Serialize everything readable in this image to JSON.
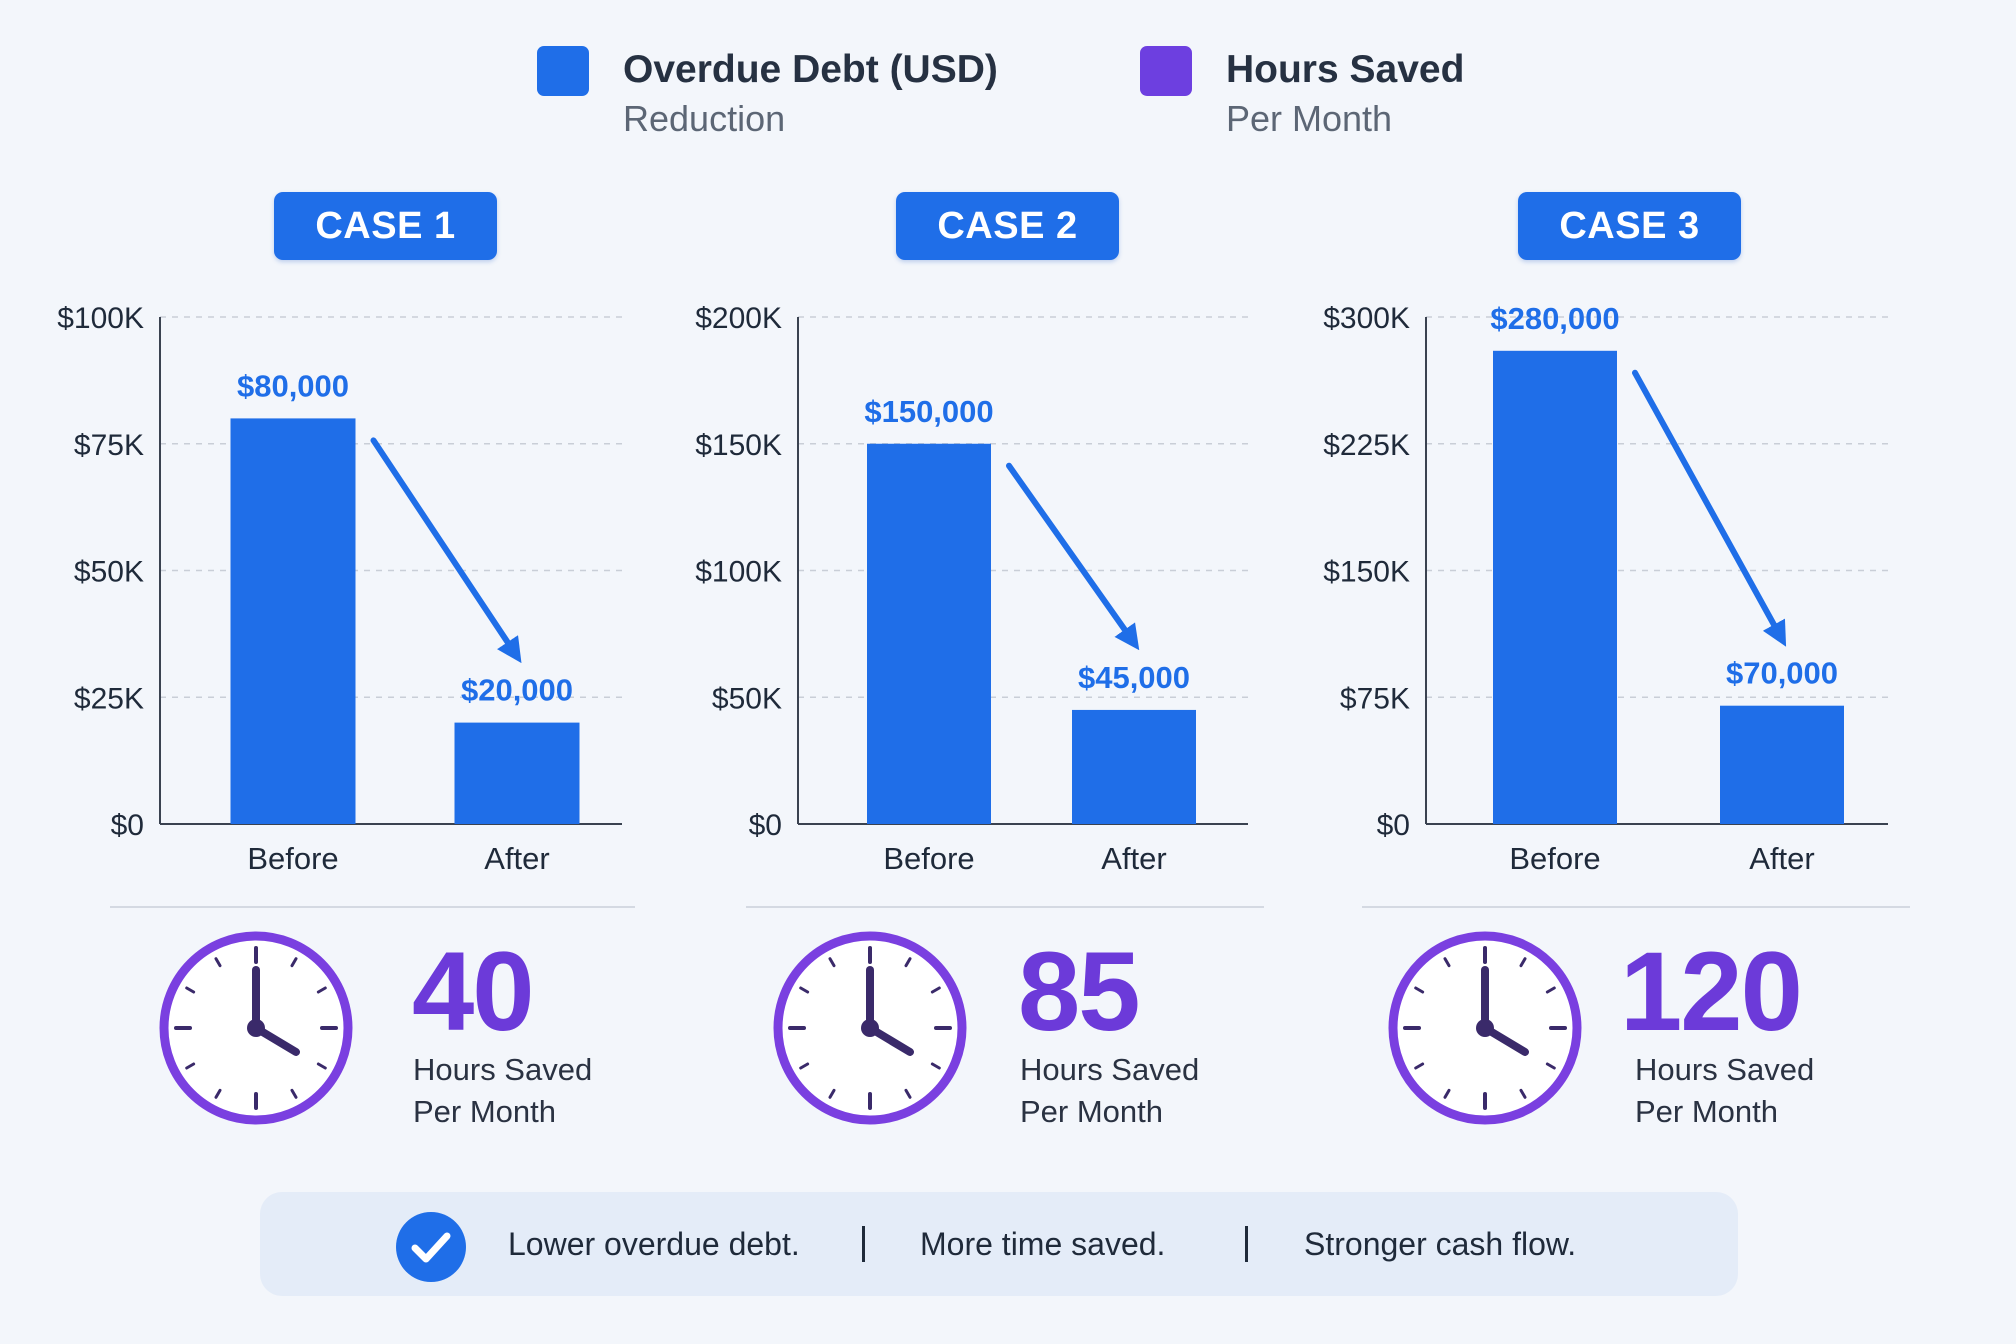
{
  "legend": [
    {
      "title": "Overdue Debt (USD)",
      "subtitle": "Reduction",
      "color": "#1f6ee8",
      "icon": "square-swatch"
    },
    {
      "title": "Hours Saved",
      "subtitle": "Per Month",
      "color": "#6d3fe0",
      "icon": "square-swatch"
    }
  ],
  "chart_data": [
    {
      "type": "bar",
      "title": "CASE 1",
      "categories": [
        "Before",
        "After"
      ],
      "values": [
        80000,
        20000
      ],
      "value_labels": [
        "$80,000",
        "$20,000"
      ],
      "yticks": [
        "$0",
        "$25K",
        "$50K",
        "$75K",
        "$100K"
      ],
      "ylim": [
        0,
        100000
      ],
      "grid": true,
      "color": "#1f6ee8",
      "hours_saved": {
        "value": "40",
        "line1": "Hours Saved",
        "line2": "Per Month"
      }
    },
    {
      "type": "bar",
      "title": "CASE 2",
      "categories": [
        "Before",
        "After"
      ],
      "values": [
        150000,
        45000
      ],
      "value_labels": [
        "$150,000",
        "$45,000"
      ],
      "yticks": [
        "$0",
        "$50K",
        "$100K",
        "$150K",
        "$200K"
      ],
      "ylim": [
        0,
        200000
      ],
      "grid": true,
      "color": "#1f6ee8",
      "hours_saved": {
        "value": "85",
        "line1": "Hours Saved",
        "line2": "Per Month"
      }
    },
    {
      "type": "bar",
      "title": "CASE 3",
      "categories": [
        "Before",
        "After"
      ],
      "values": [
        280000,
        70000
      ],
      "value_labels": [
        "$280,000",
        "$70,000"
      ],
      "yticks": [
        "$0",
        "$75K",
        "$150K",
        "$225K",
        "$300K"
      ],
      "ylim": [
        0,
        300000
      ],
      "grid": true,
      "color": "#1f6ee8",
      "hours_saved": {
        "value": "120",
        "line1": "Hours Saved",
        "line2": "Per Month"
      }
    }
  ],
  "footer": {
    "icon": "check-circle-icon",
    "items": [
      "Lower overdue debt.",
      "More time saved.",
      "Stronger cash flow."
    ]
  },
  "colors": {
    "bar": "#1f6ee8",
    "accent_purple": "#6d3fe0",
    "clock_stroke": "#7a3fe0"
  }
}
